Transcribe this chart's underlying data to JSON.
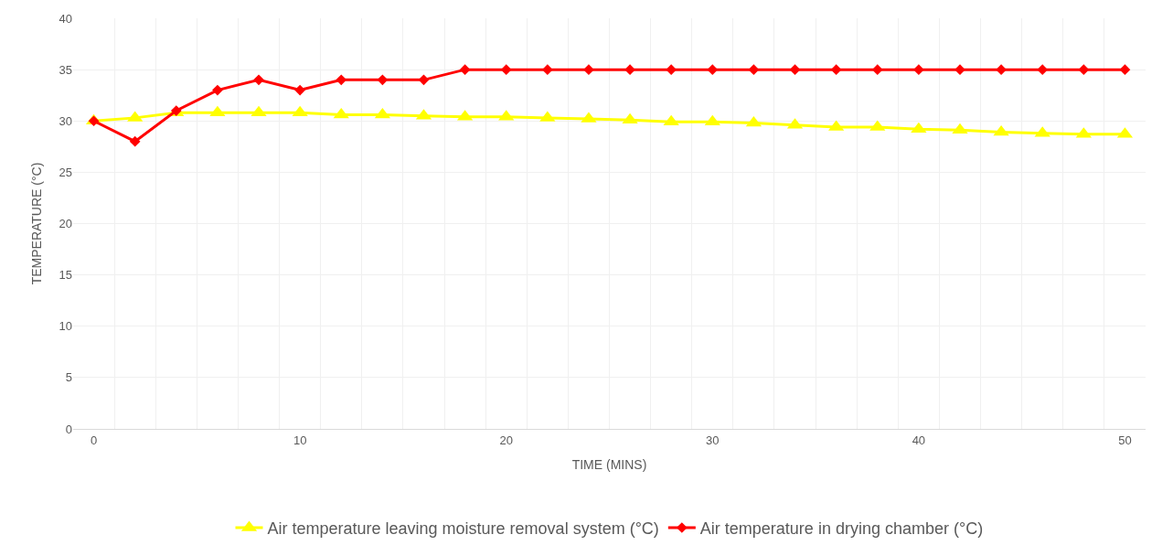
{
  "chart_data": {
    "type": "line",
    "xlabel": "TIME (MINS)",
    "ylabel": "TEMPERATURE (°C)",
    "x": [
      0,
      2,
      4,
      6,
      8,
      10,
      12,
      14,
      16,
      18,
      20,
      22,
      24,
      26,
      28,
      30,
      32,
      34,
      36,
      38,
      40,
      42,
      44,
      46,
      48,
      50
    ],
    "series": [
      {
        "name": "Air temperature leaving moisture removal system (°C)",
        "color": "#ffff00",
        "marker": "triangle",
        "values": [
          30.0,
          30.3,
          30.8,
          30.8,
          30.8,
          30.8,
          30.6,
          30.6,
          30.5,
          30.4,
          30.4,
          30.3,
          30.2,
          30.1,
          29.9,
          29.9,
          29.8,
          29.6,
          29.4,
          29.4,
          29.2,
          29.1,
          28.9,
          28.8,
          28.7,
          28.7
        ]
      },
      {
        "name": "Air temperature in drying chamber (°C)",
        "color": "#ff0000",
        "marker": "diamond",
        "values": [
          30,
          28,
          31,
          33,
          34,
          33,
          34,
          34,
          34,
          35,
          35,
          35,
          35,
          35,
          35,
          35,
          35,
          35,
          35,
          35,
          35,
          35,
          35,
          35,
          35,
          35
        ]
      }
    ],
    "xlim": [
      -1,
      51
    ],
    "xticks": [
      0,
      10,
      20,
      30,
      40,
      50
    ],
    "ylim": [
      0,
      40
    ],
    "yticks": [
      0,
      5,
      10,
      15,
      20,
      25,
      30,
      35,
      40
    ],
    "grid": true,
    "legend": "bottom",
    "line_style": "solid"
  }
}
